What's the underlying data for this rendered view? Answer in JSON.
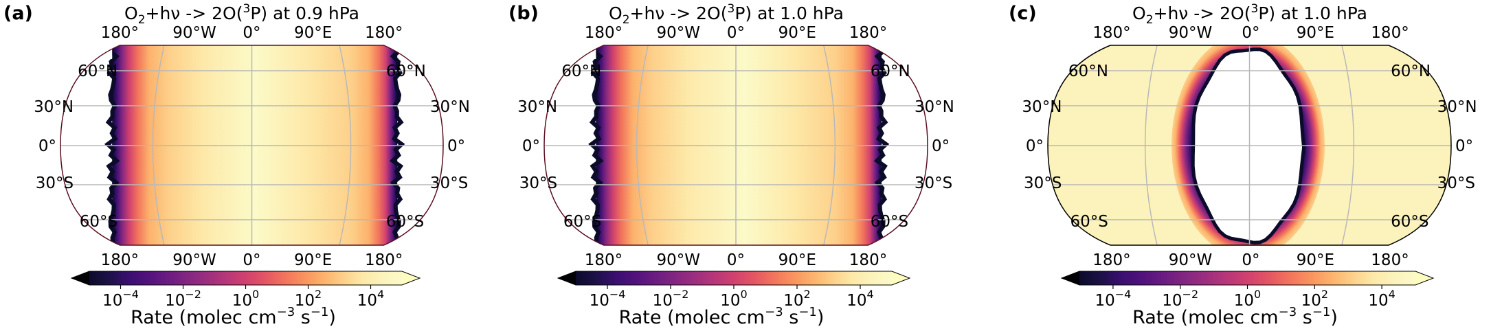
{
  "chart_data": [
    {
      "type": "heatmap",
      "panel_label": "(a)",
      "title_parts": {
        "prefix": "O",
        "sub": "2",
        "mid": "+hν -> 2O(",
        "sup": "3",
        "suffix": "P) at 0.9 hPa"
      },
      "projection": "global map",
      "field": "dayside",
      "lon_ticks": [
        "180°",
        "90°W",
        "0°",
        "90°E",
        "180°"
      ],
      "lat_ticks_left": [
        "60°N",
        "30°N",
        "0°",
        "30°S",
        "60°S"
      ],
      "lat_ticks_right": [
        "60°N",
        "30°N",
        "0°",
        "30°S",
        "60°S"
      ],
      "colorbar": {
        "scale": "log",
        "range": [
          1e-05,
          100000.0
        ],
        "ticks": [
          {
            "base": "10",
            "exp": "−4"
          },
          {
            "base": "10",
            "exp": "−2"
          },
          {
            "base": "10",
            "exp": "0"
          },
          {
            "base": "10",
            "exp": "2"
          },
          {
            "base": "10",
            "exp": "4"
          }
        ],
        "extend": "both"
      },
      "colorbar_label": {
        "pre": "Rate (molec cm",
        "sup1": "−3",
        "mid": " s",
        "sup2": "−1",
        "post": ")"
      },
      "colormap": "magma"
    },
    {
      "type": "heatmap",
      "panel_label": "(b)",
      "title_parts": {
        "prefix": "O",
        "sub": "2",
        "mid": "+hν -> 2O(",
        "sup": "3",
        "suffix": "P) at 1.0 hPa"
      },
      "projection": "global map",
      "field": "dayside",
      "lon_ticks": [
        "180°",
        "90°W",
        "0°",
        "90°E",
        "180°"
      ],
      "lat_ticks_left": [
        "60°N",
        "30°N",
        "0°",
        "30°S",
        "60°S"
      ],
      "lat_ticks_right": [
        "60°N",
        "30°N",
        "0°",
        "30°S",
        "60°S"
      ],
      "colorbar": {
        "scale": "log",
        "range": [
          1e-05,
          100000.0
        ],
        "ticks": [
          {
            "base": "10",
            "exp": "−4"
          },
          {
            "base": "10",
            "exp": "−2"
          },
          {
            "base": "10",
            "exp": "0"
          },
          {
            "base": "10",
            "exp": "2"
          },
          {
            "base": "10",
            "exp": "4"
          }
        ],
        "extend": "both"
      },
      "colorbar_label": {
        "pre": "Rate (molec cm",
        "sup1": "−3",
        "mid": " s",
        "sup2": "−1",
        "post": ")"
      },
      "colormap": "magma"
    },
    {
      "type": "heatmap",
      "panel_label": "(c)",
      "title_parts": {
        "prefix": "O",
        "sub": "2",
        "mid": "+hν -> 2O(",
        "sup": "3",
        "suffix": "P) at 1.0 hPa"
      },
      "projection": "global map",
      "field": "nightside-hole",
      "lon_ticks": [
        "180°",
        "90°W",
        "0°",
        "90°E",
        "180°"
      ],
      "lat_ticks_left": [
        "60°N",
        "30°N",
        "0°",
        "30°S",
        "60°S"
      ],
      "lat_ticks_right": [
        "60°N",
        "30°N",
        "0°",
        "30°S",
        "60°S"
      ],
      "colorbar": {
        "scale": "log",
        "range": [
          1e-05,
          100000.0
        ],
        "ticks": [
          {
            "base": "10",
            "exp": "−4"
          },
          {
            "base": "10",
            "exp": "−2"
          },
          {
            "base": "10",
            "exp": "0"
          },
          {
            "base": "10",
            "exp": "2"
          },
          {
            "base": "10",
            "exp": "4"
          }
        ],
        "extend": "both"
      },
      "colorbar_label": {
        "pre": "Rate (molec cm",
        "sup1": "−3",
        "mid": " s",
        "sup2": "−1",
        "post": ")"
      },
      "colormap": "magma"
    }
  ]
}
